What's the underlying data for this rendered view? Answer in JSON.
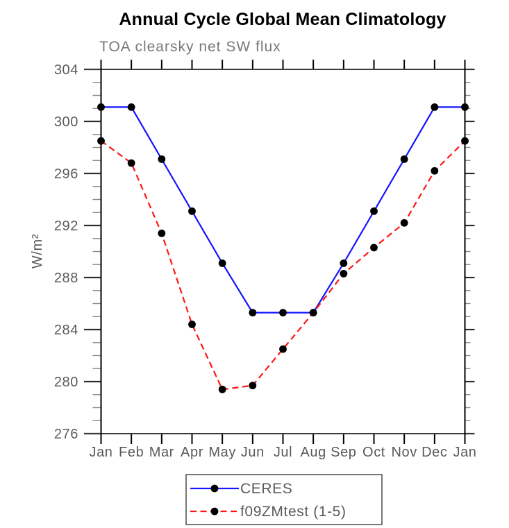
{
  "chart_data": {
    "type": "line",
    "title": "Annual Cycle Global Mean Climatology",
    "subtitle": "TOA clearsky net SW flux",
    "ylabel": "W/m²",
    "x_ticklabels": [
      "Jan",
      "Feb",
      "Mar",
      "Apr",
      "May",
      "Jun",
      "Jul",
      "Aug",
      "Sep",
      "Oct",
      "Nov",
      "Dec",
      "Jan"
    ],
    "y_ticklabels": [
      "276",
      "280",
      "284",
      "288",
      "292",
      "296",
      "300",
      "304"
    ],
    "ylim": [
      276,
      304
    ],
    "ytick_major_step": 4,
    "ytick_minor_step": 1,
    "grid": false,
    "legend_position": "bottom-center",
    "series": [
      {
        "name": "CERES",
        "line_color": "#1515ff",
        "line_style": "solid",
        "marker": "filled-circle",
        "marker_color": "#000000",
        "values": [
          301.1,
          301.1,
          297.1,
          293.1,
          289.1,
          285.3,
          285.3,
          285.3,
          289.1,
          293.1,
          297.1,
          301.1,
          301.1
        ]
      },
      {
        "name": "f09ZMtest (1-5)",
        "line_color": "#ff1515",
        "line_style": "dashed",
        "marker": "filled-circle",
        "marker_color": "#000000",
        "values": [
          298.5,
          296.8,
          291.4,
          284.4,
          279.4,
          279.7,
          282.5,
          285.3,
          288.3,
          290.3,
          292.2,
          296.2,
          298.5
        ]
      }
    ]
  },
  "style_colors": {
    "title": "#000000",
    "subtitle": "#787878",
    "frame_horizontal": "#3a3a3a",
    "frame_vertical": "#000000",
    "major_tick": "#2e2e2e",
    "minor_tick": "#8a8a8a",
    "tick_label": "#5a5a5a",
    "axis_label": "#5a5a5a",
    "legend_border": "#4a4a4a",
    "legend_text": "#5a5a5a"
  }
}
